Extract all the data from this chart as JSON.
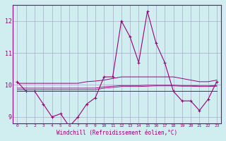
{
  "xlabel": "Windchill (Refroidissement éolien,°C)",
  "bg_color": "#d0eef0",
  "grid_color": "#aaaacc",
  "line_color": "#990077",
  "x_hours": [
    0,
    1,
    2,
    3,
    4,
    5,
    6,
    7,
    8,
    9,
    10,
    11,
    12,
    13,
    14,
    15,
    16,
    17,
    18,
    19,
    20,
    21,
    22,
    23
  ],
  "series1": [
    10.1,
    9.8,
    9.8,
    9.4,
    9.0,
    9.1,
    8.7,
    9.0,
    9.4,
    9.6,
    10.25,
    10.25,
    12.0,
    11.5,
    10.7,
    12.3,
    11.3,
    10.7,
    9.8,
    9.5,
    9.5,
    9.2,
    9.55,
    10.1
  ],
  "series2_min": [
    9.8,
    9.8,
    9.8,
    9.8,
    9.8,
    9.8,
    9.8,
    9.8,
    9.8,
    9.8,
    9.8,
    9.8,
    9.8,
    9.8,
    9.8,
    9.8,
    9.8,
    9.8,
    9.8,
    9.8,
    9.8,
    9.8,
    9.8,
    9.8
  ],
  "series2_max": [
    10.05,
    10.05,
    10.05,
    10.05,
    10.05,
    10.05,
    10.05,
    10.05,
    10.1,
    10.12,
    10.15,
    10.2,
    10.25,
    10.25,
    10.25,
    10.25,
    10.25,
    10.25,
    10.25,
    10.2,
    10.15,
    10.1,
    10.1,
    10.15
  ],
  "series3": [
    9.85,
    9.85,
    9.85,
    9.85,
    9.85,
    9.85,
    9.85,
    9.85,
    9.85,
    9.85,
    9.9,
    9.92,
    9.95,
    9.95,
    9.95,
    9.96,
    9.97,
    9.97,
    9.97,
    9.96,
    9.96,
    9.95,
    9.95,
    9.96
  ],
  "series4": [
    9.9,
    9.9,
    9.9,
    9.9,
    9.9,
    9.9,
    9.9,
    9.9,
    9.9,
    9.9,
    9.94,
    9.96,
    9.98,
    9.98,
    9.98,
    9.99,
    9.99,
    9.99,
    9.99,
    9.98,
    9.98,
    9.97,
    9.97,
    9.98
  ],
  "ylim": [
    8.8,
    12.5
  ],
  "yticks": [
    9,
    10,
    11,
    12
  ],
  "xlim": [
    -0.5,
    23.5
  ]
}
